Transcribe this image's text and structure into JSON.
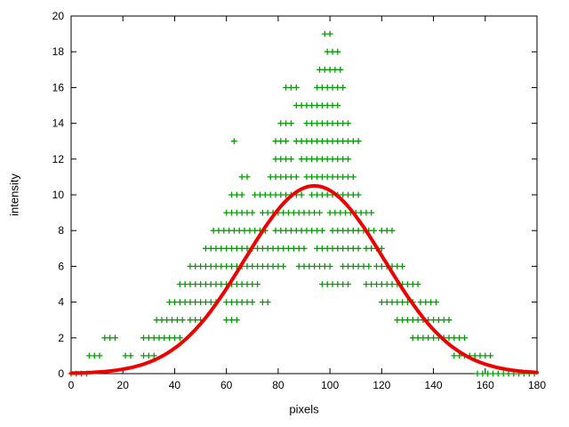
{
  "chart_data": {
    "type": "scatter",
    "title": "",
    "xlabel": "pixels",
    "ylabel": "intensity",
    "xlim": [
      0,
      180
    ],
    "ylim": [
      0,
      20
    ],
    "xticks": [
      0,
      20,
      40,
      60,
      80,
      100,
      120,
      140,
      160,
      180
    ],
    "yticks": [
      0,
      2,
      4,
      6,
      8,
      10,
      12,
      14,
      16,
      18,
      20
    ],
    "grid": false,
    "legend": "none",
    "marker": "plus",
    "marker_color": "#00a000",
    "point_step": 2,
    "scatter_rows": [
      {
        "y": 0,
        "segments": [
          [
            0,
            7
          ],
          [
            157,
            161
          ],
          [
            163,
            180
          ]
        ]
      },
      {
        "y": 1,
        "segments": [
          [
            7,
            12
          ],
          [
            21,
            24
          ],
          [
            28,
            33
          ],
          [
            148,
            156
          ],
          [
            158,
            162
          ]
        ]
      },
      {
        "y": 2,
        "segments": [
          [
            13,
            18
          ],
          [
            28,
            42
          ],
          [
            132,
            146
          ],
          [
            148,
            153
          ]
        ]
      },
      {
        "y": 3,
        "segments": [
          [
            33,
            44
          ],
          [
            46,
            50
          ],
          [
            60,
            65
          ],
          [
            126,
            140
          ],
          [
            142,
            147
          ]
        ]
      },
      {
        "y": 4,
        "segments": [
          [
            38,
            48
          ],
          [
            50,
            56
          ],
          [
            60,
            70
          ],
          [
            74,
            77
          ],
          [
            120,
            133
          ],
          [
            135,
            141
          ]
        ]
      },
      {
        "y": 5,
        "segments": [
          [
            42,
            58
          ],
          [
            60,
            73
          ],
          [
            97,
            107
          ],
          [
            114,
            126
          ],
          [
            128,
            135
          ]
        ]
      },
      {
        "y": 6,
        "segments": [
          [
            46,
            64
          ],
          [
            66,
            82
          ],
          [
            88,
            101
          ],
          [
            105,
            116
          ],
          [
            118,
            129
          ]
        ]
      },
      {
        "y": 7,
        "segments": [
          [
            52,
            70
          ],
          [
            72,
            91
          ],
          [
            95,
            112
          ],
          [
            114,
            121
          ]
        ]
      },
      {
        "y": 8,
        "segments": [
          [
            55,
            76
          ],
          [
            79,
            97
          ],
          [
            101,
            118
          ],
          [
            120,
            125
          ]
        ]
      },
      {
        "y": 9,
        "segments": [
          [
            60,
            71
          ],
          [
            74,
            96
          ],
          [
            100,
            117
          ]
        ]
      },
      {
        "y": 10,
        "segments": [
          [
            62,
            67
          ],
          [
            71,
            89
          ],
          [
            93,
            112
          ]
        ]
      },
      {
        "y": 11,
        "segments": [
          [
            66,
            69
          ],
          [
            77,
            87
          ],
          [
            91,
            109
          ]
        ]
      },
      {
        "y": 12,
        "segments": [
          [
            79,
            85
          ],
          [
            89,
            107
          ]
        ]
      },
      {
        "y": 13,
        "segments": [
          [
            63,
            64
          ],
          [
            79,
            84
          ],
          [
            87,
            99
          ],
          [
            101,
            112
          ]
        ]
      },
      {
        "y": 14,
        "segments": [
          [
            81,
            86
          ],
          [
            91,
            107
          ]
        ]
      },
      {
        "y": 15,
        "segments": [
          [
            87,
            95
          ],
          [
            97,
            104
          ]
        ]
      },
      {
        "y": 16,
        "segments": [
          [
            83,
            88
          ],
          [
            95,
            101
          ],
          [
            103,
            106
          ]
        ]
      },
      {
        "y": 17,
        "segments": [
          [
            96,
            100
          ],
          [
            102,
            105
          ]
        ]
      },
      {
        "y": 18,
        "segments": [
          [
            99,
            104
          ]
        ]
      },
      {
        "y": 19,
        "segments": [
          [
            98,
            101
          ]
        ]
      }
    ],
    "fit_curve": {
      "type": "gaussian",
      "amplitude": 10.5,
      "mean": 94,
      "sigma": 27,
      "color": "#ee0000",
      "stroke_width": 4
    },
    "border_color": "#000000",
    "background": "#ffffff"
  }
}
